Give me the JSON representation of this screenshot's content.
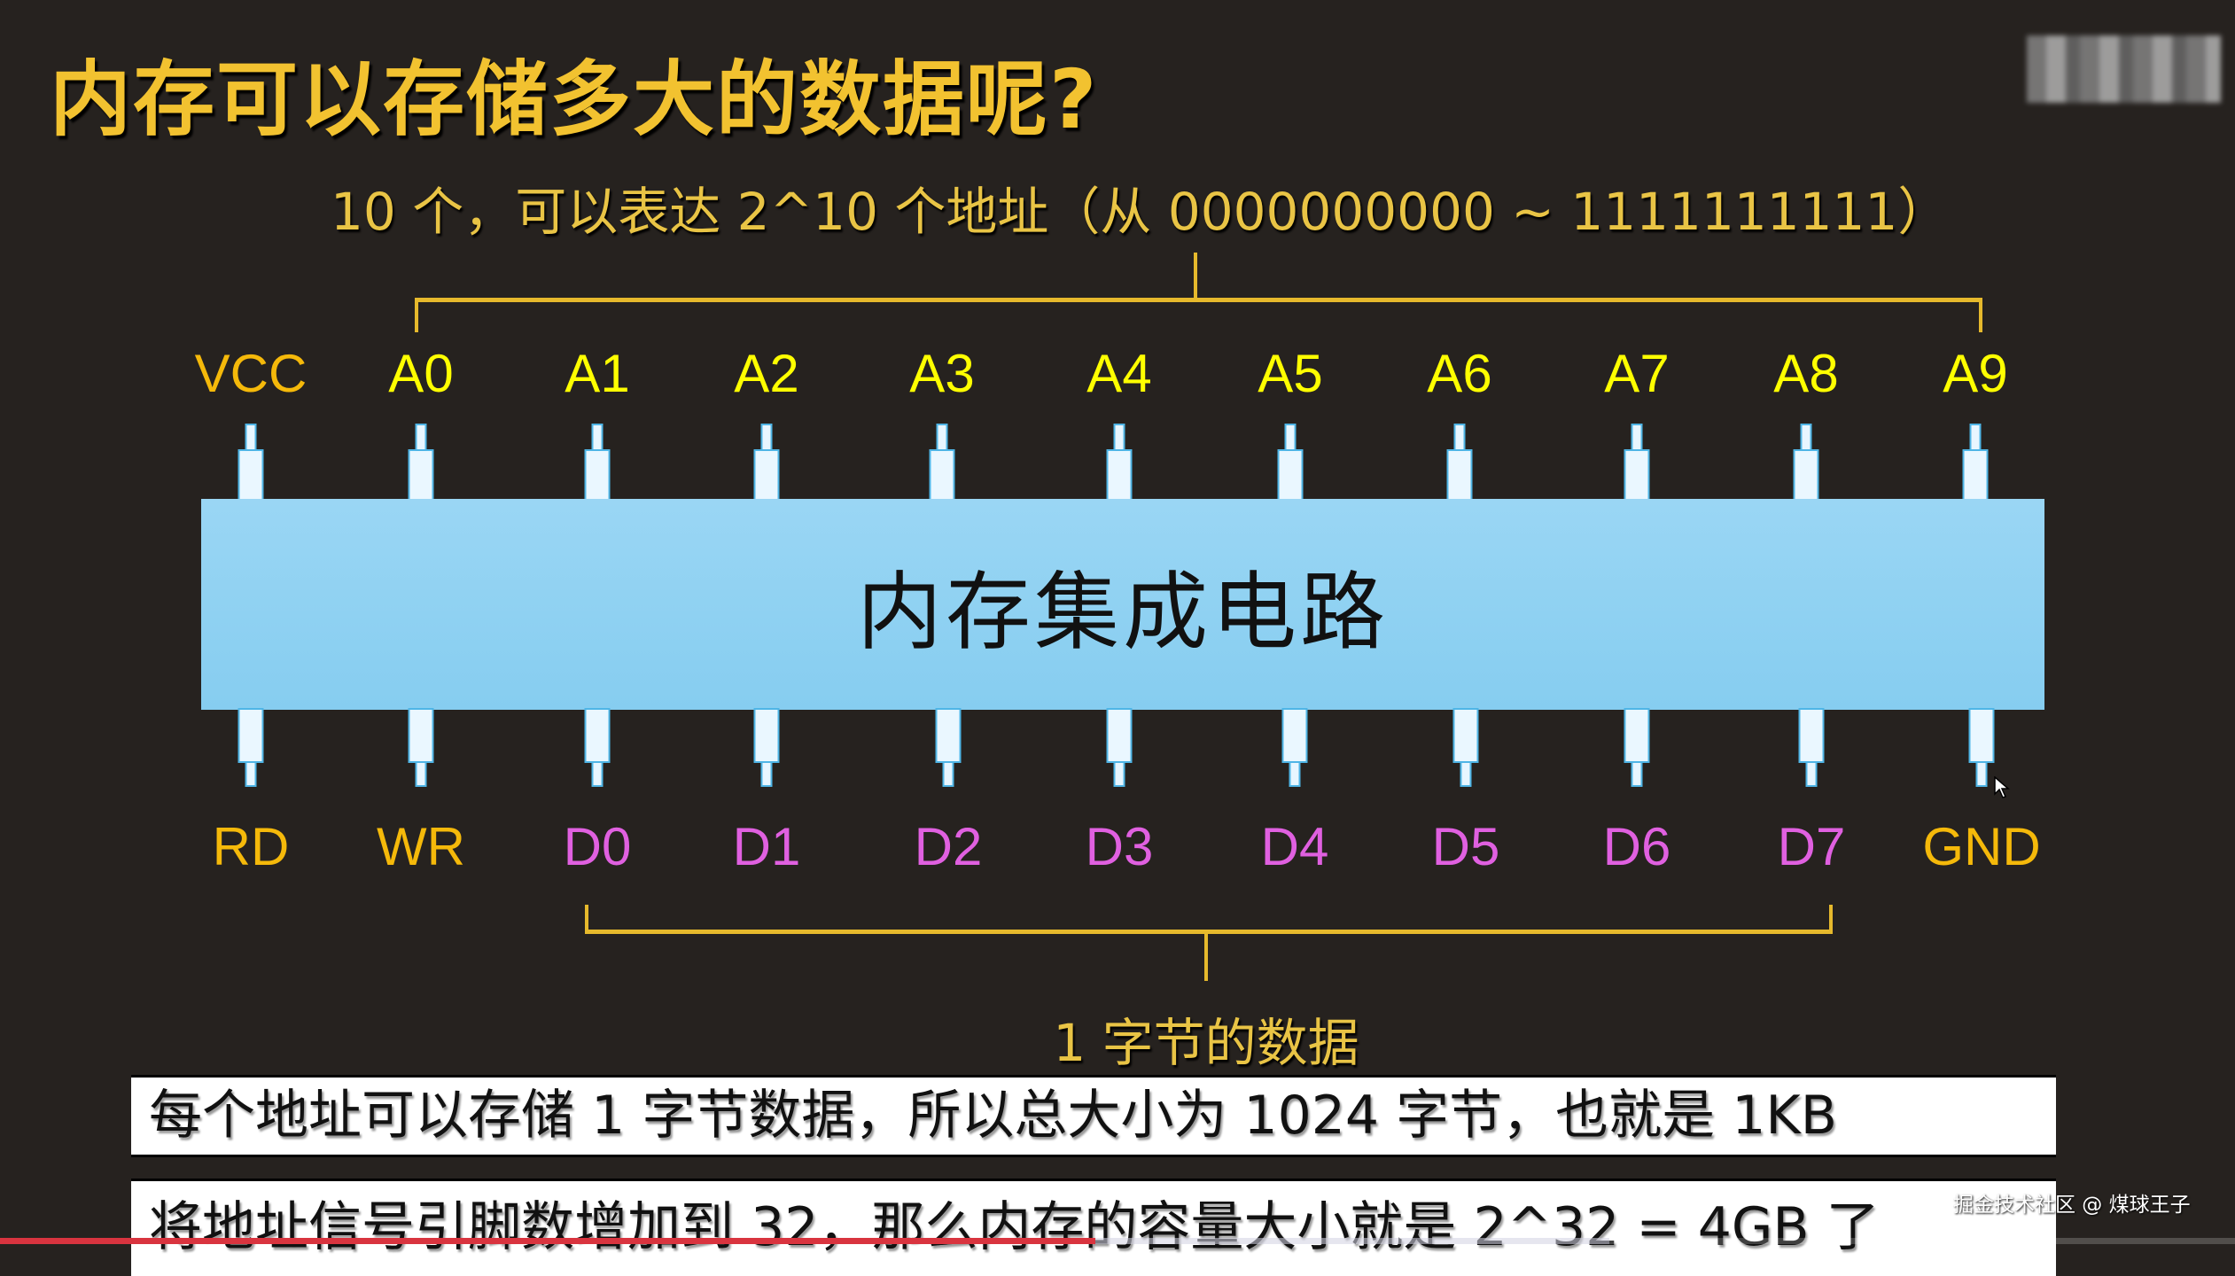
{
  "slide": {
    "title": "内存可以存储多大的数据呢?",
    "subtitle": "10 个，可以表达 2^10 个地址（从 0000000000 ~ 1111111111）",
    "chip_label": "内存集成电路",
    "top_pins": [
      "VCC",
      "A0",
      "A1",
      "A2",
      "A3",
      "A4",
      "A5",
      "A6",
      "A7",
      "A8",
      "A9"
    ],
    "bottom_pins": [
      "RD",
      "WR",
      "D0",
      "D1",
      "D2",
      "D3",
      "D4",
      "D5",
      "D6",
      "D7",
      "GND"
    ],
    "byte_label": "1 字节的数据",
    "note_1": "每个地址可以存储 1 字节数据，所以总大小为 1024 字节，也就是 1KB",
    "note_2": "将地址信号引脚数增加到 32，那么内存的容量大小就是 2^32 = 4GB 了"
  },
  "watermark": "掘金技术社区 @ 煤球王子",
  "video": {
    "played_percent": 49,
    "buffered_percent": 72
  },
  "colors": {
    "title": "#f2c230",
    "power_pin": "#f5b90a",
    "address_pin": "#ffff00",
    "data_pin": "#e060e0",
    "chip": "#9ad6f4",
    "progress": "#d9343f"
  }
}
